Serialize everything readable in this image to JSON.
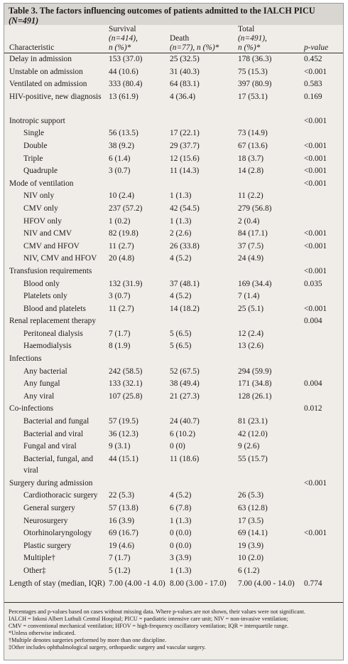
{
  "title": {
    "prefix": "Table 3. The factors influencing outcomes of patients admitted to the IALCH PICU",
    "n": "(N=491)"
  },
  "header": {
    "characteristic": "Characteristic",
    "survival": [
      "Survival",
      "(n=414),",
      "n (%)*"
    ],
    "death": [
      "Death",
      "(n=77), n (%)*"
    ],
    "total": [
      "Total",
      "(n=491),",
      "n (%)*"
    ],
    "pvalue": "p-value"
  },
  "rows": [
    {
      "label": "Delay in admission",
      "survival": "153 (37.0)",
      "death": "25 (32.5)",
      "total": "178 (36.3)",
      "p": "0.452"
    },
    {
      "label": "Unstable on admission",
      "survival": "44 (10.6)",
      "death": "31 (40.3)",
      "total": "75 (15.3)",
      "p": "<0.001"
    },
    {
      "label": "Ventilated on admission",
      "survival": "333 (80.4)",
      "death": "64 (83.1)",
      "total": "397 (80.9)",
      "p": "0.583"
    },
    {
      "label": "HIV-positive, new diagnosis",
      "survival": "13 (61.9)",
      "death": "4 (36.4)",
      "total": "17 (53.1)",
      "p": "0.169",
      "two": true
    },
    {
      "label": "Inotropic support",
      "survival": "",
      "death": "",
      "total": "",
      "p": "<0.001"
    },
    {
      "label": "Single",
      "survival": "56 (13.5)",
      "death": "17 (22.1)",
      "total": "73 (14.9)",
      "p": "",
      "sub": true
    },
    {
      "label": "Double",
      "survival": "38 (9.2)",
      "death": "29 (37.7)",
      "total": "67 (13.6)",
      "p": "<0.001",
      "sub": true
    },
    {
      "label": "Triple",
      "survival": "6 (1.4)",
      "death": "12 (15.6)",
      "total": "18 (3.7)",
      "p": "<0.001",
      "sub": true
    },
    {
      "label": "Quadruple",
      "survival": "3 (0.7)",
      "death": "11 (14.3)",
      "total": "14 (2.8)",
      "p": "<0.001",
      "sub": true
    },
    {
      "label": "Mode of ventilation",
      "survival": "",
      "death": "",
      "total": "",
      "p": "<0.001"
    },
    {
      "label": "NIV only",
      "survival": "10 (2.4)",
      "death": "1 (1.3)",
      "total": "11 (2.2)",
      "p": "",
      "sub": true
    },
    {
      "label": "CMV only",
      "survival": "237 (57.2)",
      "death": "42 (54.5)",
      "total": "279 (56.8)",
      "p": "",
      "sub": true
    },
    {
      "label": "HFOV only",
      "survival": "1 (0.2)",
      "death": "1 (1.3)",
      "total": "2 (0.4)",
      "p": "",
      "sub": true
    },
    {
      "label": "NIV and CMV",
      "survival": "82 (19.8)",
      "death": "2 (2.6)",
      "total": "84 (17.1)",
      "p": "<0.001",
      "sub": true
    },
    {
      "label": "CMV and HFOV",
      "survival": "11 (2.7)",
      "death": "26 (33.8)",
      "total": "37 (7.5)",
      "p": "<0.001",
      "sub": true
    },
    {
      "label": "NIV, CMV and HFOV",
      "survival": "20 (4.8)",
      "death": "4 (5.2)",
      "total": "24 (4.9)",
      "p": "",
      "sub": true
    },
    {
      "label": "Transfusion requirements",
      "survival": "",
      "death": "",
      "total": "",
      "p": "<0.001"
    },
    {
      "label": "Blood only",
      "survival": "132 (31.9)",
      "death": "37 (48.1)",
      "total": "169 (34.4)",
      "p": "0.035",
      "sub": true
    },
    {
      "label": "Platelets only",
      "survival": "3 (0.7)",
      "death": "4 (5.2)",
      "total": "7 (1.4)",
      "p": "",
      "sub": true
    },
    {
      "label": "Blood and platelets",
      "survival": "11 (2.7)",
      "death": "14 (18.2)",
      "total": "25 (5.1)",
      "p": "<0.001",
      "sub": true
    },
    {
      "label": "Renal replacement therapy",
      "survival": "",
      "death": "",
      "total": "",
      "p": "0.004"
    },
    {
      "label": "Peritoneal dialysis",
      "survival": "7 (1.7)",
      "death": "5 (6.5)",
      "total": "12 (2.4)",
      "p": "",
      "sub": true
    },
    {
      "label": "Haemodialysis",
      "survival": "8 (1.9)",
      "death": "5 (6.5)",
      "total": "13 (2.6)",
      "p": "",
      "sub": true
    },
    {
      "label": "Infections",
      "survival": "",
      "death": "",
      "total": "",
      "p": ""
    },
    {
      "label": "Any bacterial",
      "survival": "242 (58.5)",
      "death": "52 (67.5)",
      "total": "294 (59.9)",
      "p": "",
      "sub": true
    },
    {
      "label": "Any fungal",
      "survival": "133 (32.1)",
      "death": "38 (49.4)",
      "total": "171 (34.8)",
      "p": "0.004",
      "sub": true
    },
    {
      "label": "Any viral",
      "survival": "107 (25.8)",
      "death": "21 (27.3)",
      "total": "128 (26.1)",
      "p": "",
      "sub": true
    },
    {
      "label": "Co-infections",
      "survival": "",
      "death": "",
      "total": "",
      "p": "0.012"
    },
    {
      "label": "Bacterial and fungal",
      "survival": "57 (19.5)",
      "death": "24 (40.7)",
      "total": "81 (23.1)",
      "p": "",
      "sub": true
    },
    {
      "label": "Bacterial and viral",
      "survival": "36 (12.3)",
      "death": "6 (10.2)",
      "total": "42 (12.0)",
      "p": "",
      "sub": true
    },
    {
      "label": "Fungal and viral",
      "survival": "9 (3.1)",
      "death": "0 (0)",
      "total": "9 (2.6)",
      "p": "",
      "sub": true
    },
    {
      "label": "Bacterial, fungal, and viral",
      "survival": "44 (15.1)",
      "death": "11 (18.6)",
      "total": "55 (15.7)",
      "p": "",
      "sub": true,
      "two": true
    },
    {
      "label": "Surgery during admission",
      "survival": "",
      "death": "",
      "total": "",
      "p": "<0.001"
    },
    {
      "label": "Cardiothoracic surgery",
      "survival": "22 (5.3)",
      "death": "4 (5.2)",
      "total": "26 (5.3)",
      "p": "",
      "sub": true
    },
    {
      "label": "General surgery",
      "survival": "57 (13.8)",
      "death": "6 (7.8)",
      "total": "63 (12.8)",
      "p": "",
      "sub": true
    },
    {
      "label": "Neurosurgery",
      "survival": "16 (3.9)",
      "death": "1 (1.3)",
      "total": "17 (3.5)",
      "p": "",
      "sub": true
    },
    {
      "label": "Otorhinolaryngology",
      "survival": "69 (16.7)",
      "death": "0 (0.0)",
      "total": "69 (14.1)",
      "p": "<0.001",
      "sub": true
    },
    {
      "label": "Plastic surgery",
      "survival": "19 (4.6)",
      "death": "0 (0.0)",
      "total": "19 (3.9)",
      "p": "",
      "sub": true
    },
    {
      "label": "Multiple†",
      "survival": "7 (1.7)",
      "death": "3 (3.9)",
      "total": "10 (2.0)",
      "p": "",
      "sub": true
    },
    {
      "label": "Other‡",
      "survival": "5 (1.2)",
      "death": "1 (1.3)",
      "total": "6 (1.2)",
      "p": "",
      "sub": true
    },
    {
      "label": "Length of stay (median, IQR)",
      "survival": "7.00 (4.00 -1 4.0)",
      "death": "8.00 (3.00 - 17.0)",
      "total": "7.00 (4.00 - 14.0)",
      "p": "0.774",
      "two": true,
      "last": true
    }
  ],
  "notes": [
    "Percentages and p-values based on cases without missing data. Where p-values are not shown, their values were not significant.",
    "IALCH = Inkosi Albert Luthuli Central Hospital; PICU = paediatric intensive care unit; NIV = non-invasive ventilation;",
    "CMV = conventional mechanical ventilation; HFOV = high-frequency oscillatory ventilation; IQR = interquartile range.",
    "*Unless otherwise indicated.",
    "†Multiple denotes surgeries performed by more than one discipline.",
    "‡Other includes ophthalmological surgery, orthopaedic surgery and vascular surgery."
  ]
}
